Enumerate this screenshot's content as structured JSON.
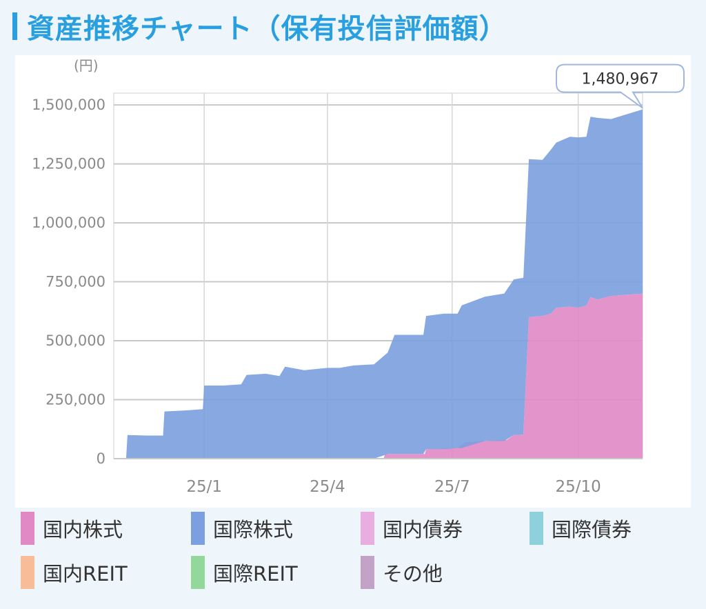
{
  "header": {
    "title": "資産推移チャート（保有投信評価額）"
  },
  "colors": {
    "title": "#2a9fe0"
  },
  "chart_data": {
    "type": "area",
    "stacked": true,
    "unit_label": "(円)",
    "ylim": [
      0,
      1550000
    ],
    "yticks": [
      0,
      250000,
      500000,
      750000,
      1000000,
      1250000,
      1500000
    ],
    "ytick_labels": [
      "0",
      "250,000",
      "500,000",
      "750,000",
      "1,000,000",
      "1,250,000",
      "1,500,000"
    ],
    "xlim": [
      "2024-10-27",
      "2025-11-17"
    ],
    "xticks": [
      "2025-01-01",
      "2025-04-01",
      "2025-07-01",
      "2025-10-01"
    ],
    "xtick_labels": [
      "25/1",
      "25/4",
      "25/7",
      "25/10"
    ],
    "grid": true,
    "legend_position": "bottom",
    "callout": {
      "date": "2025-11-17",
      "value": 1480967,
      "label": "1,480,967"
    },
    "series": [
      {
        "name": "国内株式",
        "color": "#e089c5",
        "points": [
          [
            "2025-05-12",
            0
          ],
          [
            "2025-05-13",
            20000
          ],
          [
            "2025-06-11",
            20000
          ],
          [
            "2025-06-12",
            40000
          ],
          [
            "2025-07-05",
            45000
          ],
          [
            "2025-07-10",
            70000
          ],
          [
            "2025-07-25",
            75000
          ],
          [
            "2025-08-10",
            80000
          ],
          [
            "2025-08-15",
            100000
          ],
          [
            "2025-08-22",
            102000
          ],
          [
            "2025-08-26",
            600000
          ],
          [
            "2025-09-05",
            605000
          ],
          [
            "2025-09-11",
            615000
          ],
          [
            "2025-09-15",
            640000
          ],
          [
            "2025-09-25",
            645000
          ],
          [
            "2025-10-01",
            640000
          ],
          [
            "2025-10-07",
            650000
          ],
          [
            "2025-10-10",
            685000
          ],
          [
            "2025-10-15",
            675000
          ],
          [
            "2025-10-25",
            690000
          ],
          [
            "2025-11-17",
            700000
          ]
        ]
      },
      {
        "name": "国際株式",
        "color": "#7b9fdf",
        "points": [
          [
            "2024-11-05",
            0
          ],
          [
            "2024-11-06",
            100000
          ],
          [
            "2024-11-20",
            98000
          ],
          [
            "2024-12-02",
            98000
          ],
          [
            "2024-12-03",
            200000
          ],
          [
            "2024-12-20",
            205000
          ],
          [
            "2024-12-31",
            210000
          ],
          [
            "2025-01-01",
            310000
          ],
          [
            "2025-01-15",
            310000
          ],
          [
            "2025-01-28",
            315000
          ],
          [
            "2025-02-01",
            355000
          ],
          [
            "2025-02-15",
            360000
          ],
          [
            "2025-02-25",
            350000
          ],
          [
            "2025-03-01",
            390000
          ],
          [
            "2025-03-15",
            375000
          ],
          [
            "2025-04-01",
            385000
          ],
          [
            "2025-04-10",
            385000
          ],
          [
            "2025-04-20",
            395000
          ],
          [
            "2025-05-05",
            400000
          ],
          [
            "2025-05-15",
            430000
          ],
          [
            "2025-05-20",
            505000
          ],
          [
            "2025-06-10",
            505000
          ],
          [
            "2025-06-12",
            565000
          ],
          [
            "2025-06-25",
            575000
          ],
          [
            "2025-07-05",
            570000
          ],
          [
            "2025-07-08",
            605000
          ],
          [
            "2025-07-25",
            612000
          ],
          [
            "2025-08-08",
            625000
          ],
          [
            "2025-08-15",
            660000
          ],
          [
            "2025-08-22",
            665000
          ],
          [
            "2025-08-26",
            670000
          ],
          [
            "2025-09-05",
            662000
          ],
          [
            "2025-09-11",
            695000
          ],
          [
            "2025-09-15",
            700000
          ],
          [
            "2025-09-25",
            720000
          ],
          [
            "2025-10-01",
            722000
          ],
          [
            "2025-10-07",
            715000
          ],
          [
            "2025-10-10",
            765000
          ],
          [
            "2025-10-15",
            770000
          ],
          [
            "2025-10-25",
            750000
          ],
          [
            "2025-11-17",
            780967
          ]
        ]
      },
      {
        "name": "国内債券",
        "color": "#e8aee2",
        "points": []
      },
      {
        "name": "国際債券",
        "color": "#8fd0dd",
        "points": []
      },
      {
        "name": "国内REIT",
        "color": "#f9bc98",
        "points": []
      },
      {
        "name": "国際REIT",
        "color": "#92d89a",
        "points": []
      },
      {
        "name": "その他",
        "color": "#c3a2c8",
        "points": []
      }
    ]
  }
}
